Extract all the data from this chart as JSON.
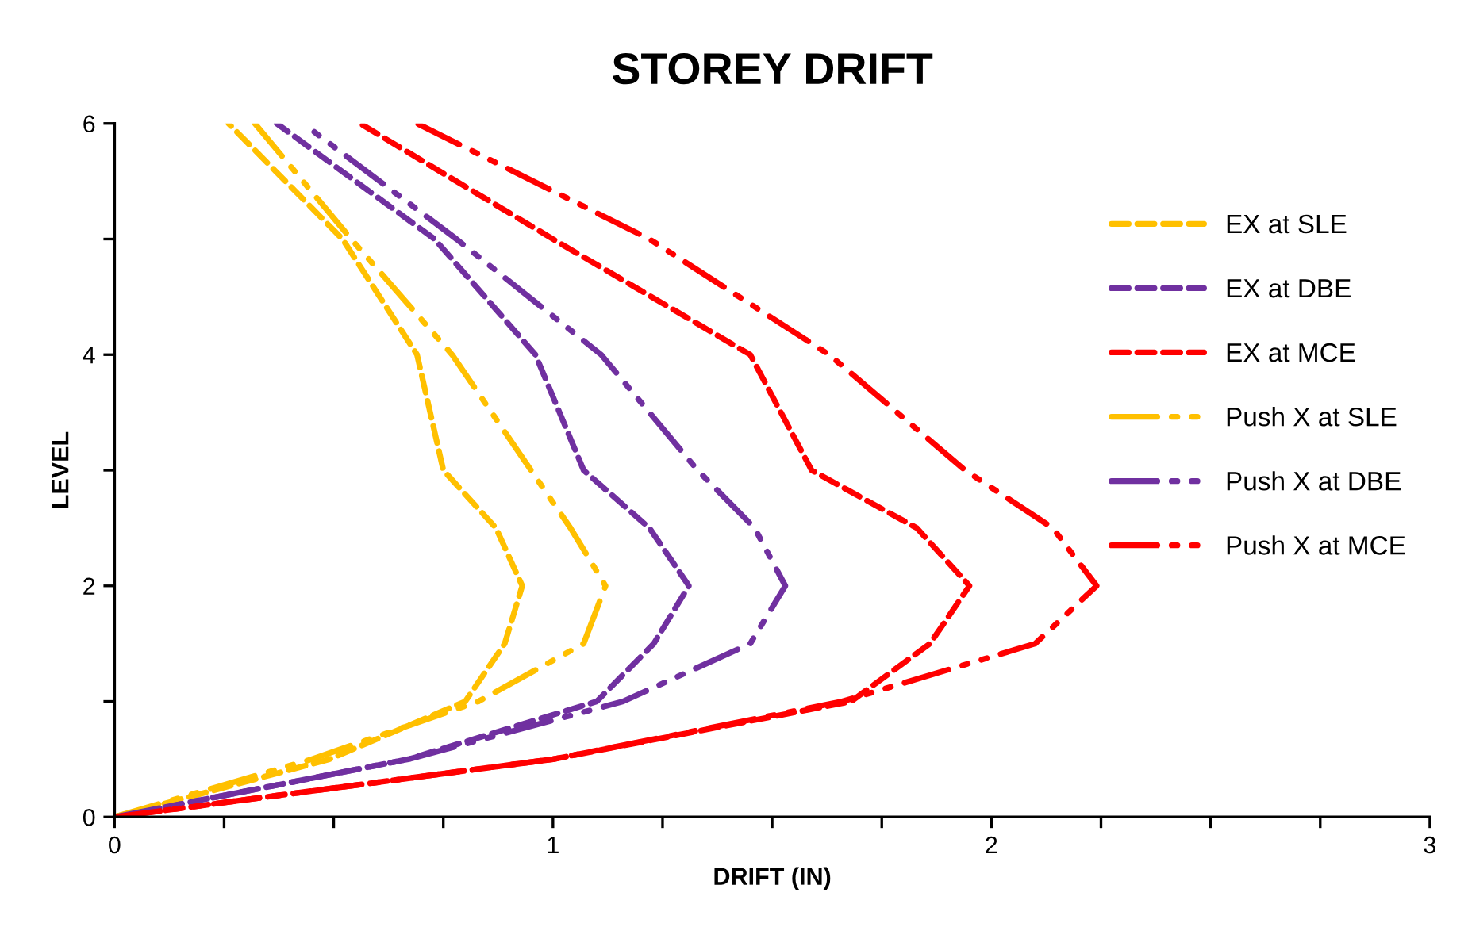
{
  "chart_data": {
    "type": "line",
    "title": "STOREY DRIFT",
    "xlabel": "DRIFT (IN)",
    "ylabel": "LEVEL",
    "xlim": [
      0,
      3
    ],
    "ylim": [
      0,
      6
    ],
    "xticks": [
      0,
      {
        "value": 0.25,
        "label": null
      },
      {
        "value": 0.5,
        "label": null
      },
      {
        "value": 0.75,
        "label": null
      },
      1,
      {
        "value": 1.25,
        "label": null
      },
      {
        "value": 1.5,
        "label": null
      },
      {
        "value": 1.75,
        "label": null
      },
      2,
      {
        "value": 2.25,
        "label": null
      },
      {
        "value": 2.5,
        "label": null
      },
      {
        "value": 2.75,
        "label": null
      },
      3
    ],
    "yticks": [
      0,
      {
        "value": 1,
        "label": null
      },
      2,
      {
        "value": 3,
        "label": null
      },
      4,
      {
        "value": 5,
        "label": null
      },
      6
    ],
    "grid": false,
    "legend": "right",
    "marker": "none",
    "series": [
      {
        "name": "EX at SLE",
        "color": "#ffc000",
        "line_style": "dashed",
        "x": [
          0,
          0.49,
          0.8,
          0.89,
          0.93,
          0.87,
          0.75,
          0.69,
          0.52,
          0.26
        ],
        "values": [
          0,
          0.5,
          1,
          1.5,
          2,
          2.5,
          3,
          4,
          5,
          6
        ]
      },
      {
        "name": "EX at DBE",
        "color": "#7030a0",
        "line_style": "dashed",
        "x": [
          0,
          0.67,
          1.1,
          1.23,
          1.31,
          1.22,
          1.07,
          0.96,
          0.73,
          0.37
        ],
        "values": [
          0,
          0.5,
          1,
          1.5,
          2,
          2.5,
          3,
          4,
          5,
          6
        ]
      },
      {
        "name": "EX at MCE",
        "color": "#ff0000",
        "line_style": "dashed",
        "x": [
          0,
          1.0,
          1.68,
          1.86,
          1.95,
          1.83,
          1.59,
          1.45,
          1.0,
          0.56
        ],
        "values": [
          0,
          0.5,
          1,
          1.5,
          2,
          2.5,
          3,
          4,
          5,
          6
        ]
      },
      {
        "name": "Push X at SLE",
        "color": "#ffc000",
        "line_style": "dashdotdot",
        "x": [
          0,
          0.45,
          0.83,
          1.07,
          1.12,
          1.04,
          0.95,
          0.77,
          0.54,
          0.32
        ],
        "values": [
          0,
          0.5,
          1,
          1.5,
          2,
          2.5,
          3,
          4,
          5,
          6
        ]
      },
      {
        "name": "Push X at DBE",
        "color": "#7030a0",
        "line_style": "dashdotdot",
        "x": [
          0,
          0.67,
          1.16,
          1.45,
          1.53,
          1.46,
          1.33,
          1.11,
          0.78,
          0.43
        ],
        "values": [
          0,
          0.5,
          1,
          1.5,
          2,
          2.5,
          3,
          4,
          5,
          6
        ]
      },
      {
        "name": "Push X at MCE",
        "color": "#ff0000",
        "line_style": "dashdotdot",
        "x": [
          0,
          1.0,
          1.66,
          2.1,
          2.24,
          2.14,
          1.94,
          1.63,
          1.22,
          0.69
        ],
        "values": [
          0,
          0.5,
          1,
          1.5,
          2,
          2.5,
          3,
          4,
          5,
          6
        ]
      }
    ]
  }
}
